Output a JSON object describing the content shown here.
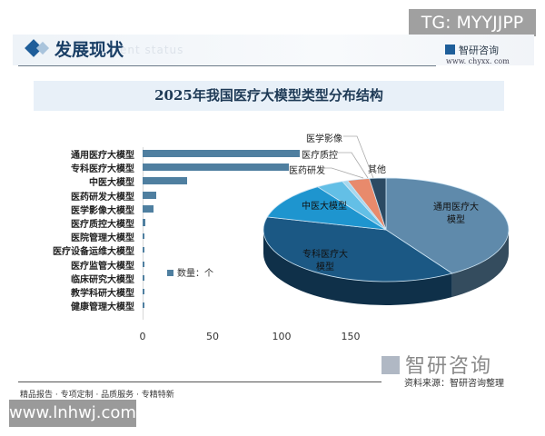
{
  "watermark_top": "TG: MYYJJPP",
  "watermark_bottom": "www.lnhwj.com",
  "header": {
    "title": "发展现状",
    "subtitle": "ent status",
    "brand_name": "智研咨询",
    "brand_url": "www. chyxx. com"
  },
  "footer": {
    "slogan": "精品报告 · 专项定制 · 品质服务 · 专精特新",
    "source": "资料来源：智研咨询整理",
    "brand_name": "智研咨询"
  },
  "chart_data": [
    {
      "type": "bar",
      "orientation": "horizontal",
      "title": "2025年我国医疗大模型类型分布结构",
      "categories": [
        "通用医疗大模型",
        "专科医疗大模型",
        "中医大模型",
        "医药研发大模型",
        "医学影像大模型",
        "医疗质控大模型",
        "医院管理大模型",
        "医疗设备运维大模型",
        "医疗监管大模型",
        "临床研究大模型",
        "教学科研大模型",
        "健康管理大模型"
      ],
      "series": [
        {
          "name": "数量：个",
          "values": [
            113,
            105,
            32,
            10,
            8,
            2,
            1,
            1,
            1,
            1,
            1,
            1
          ]
        }
      ],
      "xticks": [
        "0",
        "50",
        "100",
        "150"
      ],
      "xlim": [
        0,
        170
      ],
      "legend": "数量：个",
      "color": "#4f7fa0"
    },
    {
      "type": "pie",
      "style": "3d",
      "labels": [
        "通用医疗大模型",
        "专科医疗大模型",
        "中医大模型",
        "医药研发",
        "医疗质控",
        "医学影像",
        "其他"
      ],
      "display_labels": [
        "通用医疗大\n模型",
        "专科医疗大\n模型",
        "中医大模型",
        "医药研发",
        "医疗质控",
        "医学影像",
        "其他"
      ],
      "values": [
        113,
        105,
        32,
        10,
        2,
        8,
        6
      ],
      "colors": [
        "#5f8aab",
        "#1b5884",
        "#1e95cf",
        "#63bfe6",
        "#a6d8ee",
        "#e88a6c",
        "#2b4a63"
      ]
    }
  ],
  "labels": {
    "bar_categories": [
      "通用医疗大模型",
      "专科医疗大模型",
      "中医大模型",
      "医药研发大模型",
      "医学影像大模型",
      "医疗质控大模型",
      "医院管理大模型",
      "医疗设备运维大模型",
      "医疗监管大模型",
      "临床研究大模型",
      "教学科研大模型",
      "健康管理大模型"
    ],
    "ticks": [
      "0",
      "50",
      "100",
      "150"
    ],
    "legend": "数量：个",
    "pie_general_1": "通用医疗大",
    "pie_general_2": "模型",
    "pie_special_1": "专科医疗大",
    "pie_special_2": "模型",
    "pie_tcm": "中医大模型",
    "pie_drug": "医药研发",
    "pie_qc": "医疗质控",
    "pie_imaging": "医学影像",
    "pie_other": "其他"
  }
}
